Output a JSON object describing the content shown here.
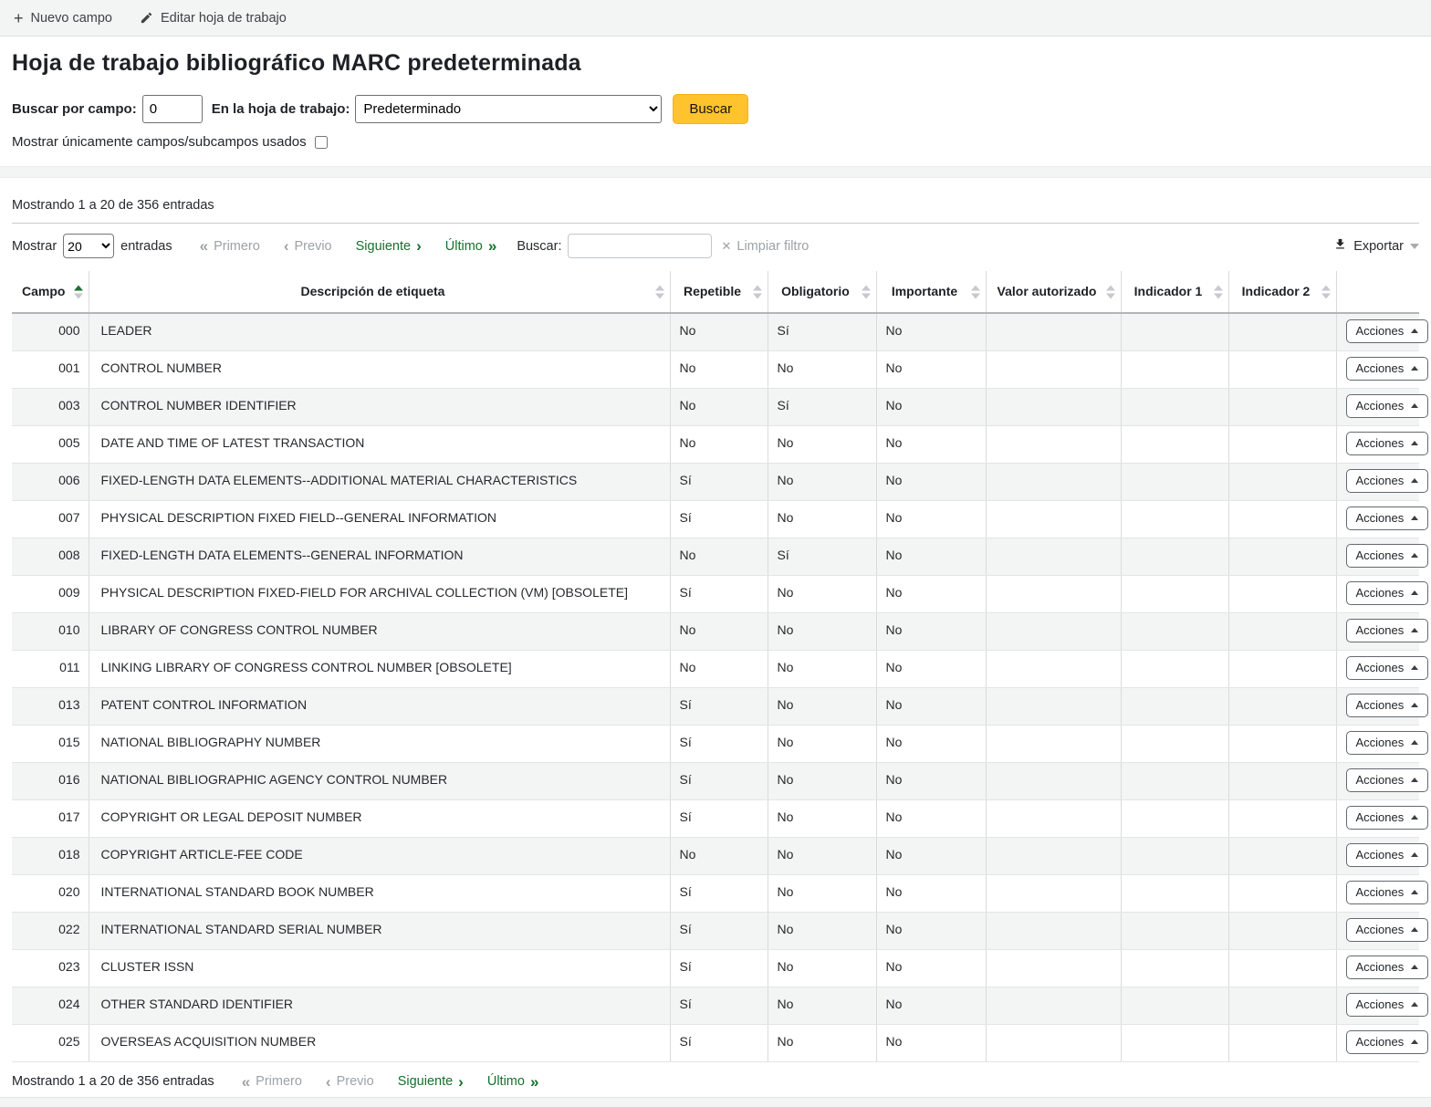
{
  "toolbar": {
    "new_field_label": "Nuevo campo",
    "edit_framework_label": "Editar hoja de trabajo"
  },
  "page": {
    "title": "Hoja de trabajo bibliográfico MARC predeterminada"
  },
  "search_form": {
    "field_label": "Buscar por campo:",
    "field_value": "0",
    "framework_label": "En la hoja de trabajo:",
    "framework_selected": "Predeterminado",
    "submit_label": "Buscar",
    "show_used_label": "Mostrar únicamente campos/subcampos usados",
    "show_used_checked": false
  },
  "datatable": {
    "info": "Mostrando 1 a 20 de 356 entradas",
    "show_label": "Mostrar",
    "page_length": "20",
    "entries_label": "entradas",
    "first_label": "Primero",
    "previous_label": "Previo",
    "next_label": "Siguiente",
    "last_label": "Último",
    "search_label": "Buscar:",
    "search_value": "",
    "clear_filter_label": "Limpiar filtro",
    "export_label": "Exportar",
    "columns": [
      "Campo",
      "Descripción de etiqueta",
      "Repetible",
      "Obligatorio",
      "Importante",
      "Valor autorizado",
      "Indicador 1",
      "Indicador 2"
    ],
    "actions_label": "Acciones",
    "rows": [
      {
        "campo": "000",
        "descripcion": "LEADER",
        "repetible": "No",
        "obligatorio": "Sí",
        "importante": "No",
        "valor_autorizado": "",
        "indicador1": "",
        "indicador2": ""
      },
      {
        "campo": "001",
        "descripcion": "CONTROL NUMBER",
        "repetible": "No",
        "obligatorio": "No",
        "importante": "No",
        "valor_autorizado": "",
        "indicador1": "",
        "indicador2": ""
      },
      {
        "campo": "003",
        "descripcion": "CONTROL NUMBER IDENTIFIER",
        "repetible": "No",
        "obligatorio": "Sí",
        "importante": "No",
        "valor_autorizado": "",
        "indicador1": "",
        "indicador2": ""
      },
      {
        "campo": "005",
        "descripcion": "DATE AND TIME OF LATEST TRANSACTION",
        "repetible": "No",
        "obligatorio": "No",
        "importante": "No",
        "valor_autorizado": "",
        "indicador1": "",
        "indicador2": ""
      },
      {
        "campo": "006",
        "descripcion": "FIXED-LENGTH DATA ELEMENTS--ADDITIONAL MATERIAL CHARACTERISTICS",
        "repetible": "Sí",
        "obligatorio": "No",
        "importante": "No",
        "valor_autorizado": "",
        "indicador1": "",
        "indicador2": ""
      },
      {
        "campo": "007",
        "descripcion": "PHYSICAL DESCRIPTION FIXED FIELD--GENERAL INFORMATION",
        "repetible": "Sí",
        "obligatorio": "No",
        "importante": "No",
        "valor_autorizado": "",
        "indicador1": "",
        "indicador2": ""
      },
      {
        "campo": "008",
        "descripcion": "FIXED-LENGTH DATA ELEMENTS--GENERAL INFORMATION",
        "repetible": "No",
        "obligatorio": "Sí",
        "importante": "No",
        "valor_autorizado": "",
        "indicador1": "",
        "indicador2": ""
      },
      {
        "campo": "009",
        "descripcion": "PHYSICAL DESCRIPTION FIXED-FIELD FOR ARCHIVAL COLLECTION (VM) [OBSOLETE]",
        "repetible": "Sí",
        "obligatorio": "No",
        "importante": "No",
        "valor_autorizado": "",
        "indicador1": "",
        "indicador2": ""
      },
      {
        "campo": "010",
        "descripcion": "LIBRARY OF CONGRESS CONTROL NUMBER",
        "repetible": "No",
        "obligatorio": "No",
        "importante": "No",
        "valor_autorizado": "",
        "indicador1": "",
        "indicador2": ""
      },
      {
        "campo": "011",
        "descripcion": "LINKING LIBRARY OF CONGRESS CONTROL NUMBER [OBSOLETE]",
        "repetible": "No",
        "obligatorio": "No",
        "importante": "No",
        "valor_autorizado": "",
        "indicador1": "",
        "indicador2": ""
      },
      {
        "campo": "013",
        "descripcion": "PATENT CONTROL INFORMATION",
        "repetible": "Sí",
        "obligatorio": "No",
        "importante": "No",
        "valor_autorizado": "",
        "indicador1": "",
        "indicador2": ""
      },
      {
        "campo": "015",
        "descripcion": "NATIONAL BIBLIOGRAPHY NUMBER",
        "repetible": "Sí",
        "obligatorio": "No",
        "importante": "No",
        "valor_autorizado": "",
        "indicador1": "",
        "indicador2": ""
      },
      {
        "campo": "016",
        "descripcion": "NATIONAL BIBLIOGRAPHIC AGENCY CONTROL NUMBER",
        "repetible": "Sí",
        "obligatorio": "No",
        "importante": "No",
        "valor_autorizado": "",
        "indicador1": "",
        "indicador2": ""
      },
      {
        "campo": "017",
        "descripcion": "COPYRIGHT OR LEGAL DEPOSIT NUMBER",
        "repetible": "Sí",
        "obligatorio": "No",
        "importante": "No",
        "valor_autorizado": "",
        "indicador1": "",
        "indicador2": ""
      },
      {
        "campo": "018",
        "descripcion": "COPYRIGHT ARTICLE-FEE CODE",
        "repetible": "No",
        "obligatorio": "No",
        "importante": "No",
        "valor_autorizado": "",
        "indicador1": "",
        "indicador2": ""
      },
      {
        "campo": "020",
        "descripcion": "INTERNATIONAL STANDARD BOOK NUMBER",
        "repetible": "Sí",
        "obligatorio": "No",
        "importante": "No",
        "valor_autorizado": "",
        "indicador1": "",
        "indicador2": ""
      },
      {
        "campo": "022",
        "descripcion": "INTERNATIONAL STANDARD SERIAL NUMBER",
        "repetible": "Sí",
        "obligatorio": "No",
        "importante": "No",
        "valor_autorizado": "",
        "indicador1": "",
        "indicador2": ""
      },
      {
        "campo": "023",
        "descripcion": "CLUSTER ISSN",
        "repetible": "Sí",
        "obligatorio": "No",
        "importante": "No",
        "valor_autorizado": "",
        "indicador1": "",
        "indicador2": ""
      },
      {
        "campo": "024",
        "descripcion": "OTHER STANDARD IDENTIFIER",
        "repetible": "Sí",
        "obligatorio": "No",
        "importante": "No",
        "valor_autorizado": "",
        "indicador1": "",
        "indicador2": ""
      },
      {
        "campo": "025",
        "descripcion": "OVERSEAS ACQUISITION NUMBER",
        "repetible": "Sí",
        "obligatorio": "No",
        "importante": "No",
        "valor_autorizado": "",
        "indicador1": "",
        "indicador2": ""
      }
    ]
  },
  "icons": {
    "plus": "+",
    "clear": "✕",
    "chevron_first": "«",
    "chevron_prev": "‹",
    "chevron_next": "›",
    "chevron_last": "»"
  },
  "colors": {
    "accent_yellow": "#fec32d",
    "link_green": "#16702c",
    "disabled_gray": "#9da2a6",
    "stripe_gray": "#f3f4f4"
  }
}
